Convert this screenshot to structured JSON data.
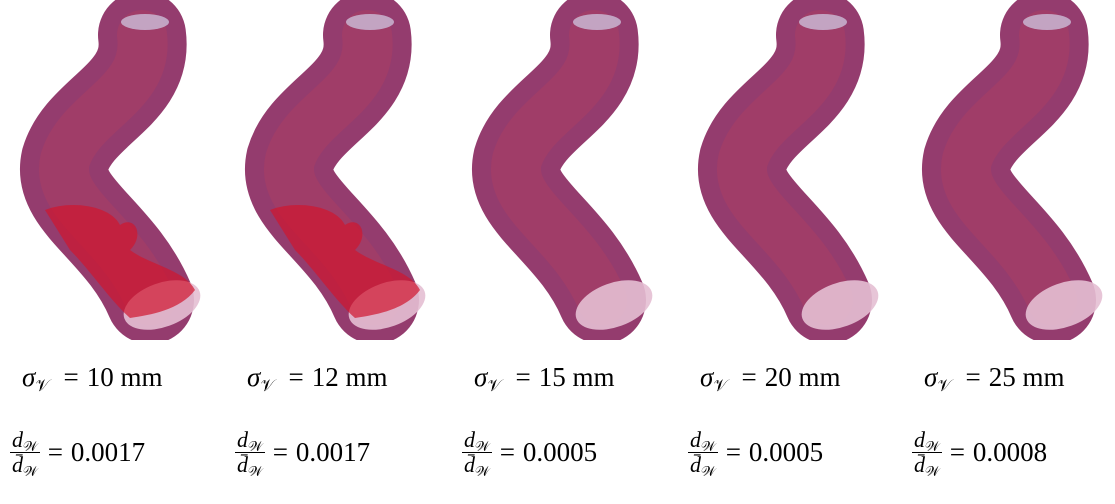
{
  "symbols": {
    "sigma": "σ",
    "sub_v": "𝒱",
    "equals": "=",
    "d": "d",
    "d_bar": "d̄",
    "sub_w": "𝒲"
  },
  "panels": [
    {
      "sigma_value": "10 mm",
      "ratio_value": "0.0017",
      "red_fold": true
    },
    {
      "sigma_value": "12 mm",
      "ratio_value": "0.0017",
      "red_fold": true
    },
    {
      "sigma_value": "15 mm",
      "ratio_value": "0.0005",
      "red_fold": false
    },
    {
      "sigma_value": "20 mm",
      "ratio_value": "0.0005",
      "red_fold": false
    },
    {
      "sigma_value": "25 mm",
      "ratio_value": "0.0008",
      "red_fold": false
    }
  ]
}
